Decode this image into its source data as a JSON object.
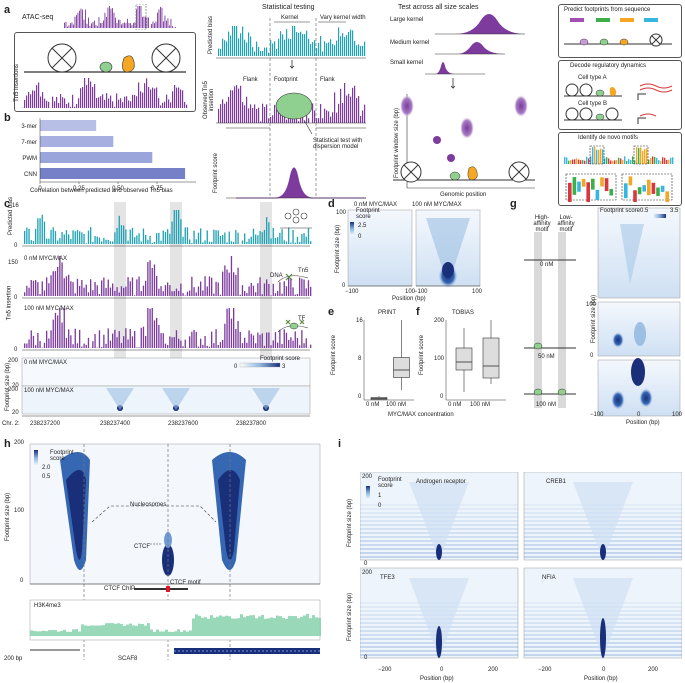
{
  "panel_a": {
    "label": "a",
    "atac_label": "ATAC-seq",
    "tn5_label": "Tn5 insertions",
    "predicted_bias": "Predicted bias",
    "observed_tn5": "Observed Tn5 insertion",
    "footprint_score": "Footprint score",
    "statistical_testing": "Statistical testing",
    "kernel": "Kernel",
    "vary_kernel_width": "Vary kernel width",
    "flank": "Flank",
    "footprint": "Footprint",
    "stat_test": "Statistical test with dispersion model",
    "test_all": "Test across all size scales",
    "large_kernel": "Large kernel",
    "medium_kernel": "Medium kernel",
    "small_kernel": "Small kernel",
    "window_size": "Footprint window size (bp)",
    "genomic_position": "Genomic position",
    "predict_footprints": "Predict footprints from sequence",
    "decode_dynamics": "Decode regulatory dynamics",
    "cell_type_a": "Cell type A",
    "cell_type_b": "Cell type B",
    "identify_motifs": "Identify de novo motifs"
  },
  "panel_b": {
    "label": "b",
    "xlabel": "Correlation between predicted and observed Tn5 bias",
    "ticks": [
      "0",
      "0.25",
      "0.50",
      "0.75"
    ]
  },
  "panel_c": {
    "label": "c",
    "predicted_bias": "Predicted bias",
    "tn5_insertion": "Tn5 insertion",
    "footprint_size": "Footprint size (bp)",
    "row_0nM": "0 nM MYC/MAX",
    "row_100nM": "100 nM MYC/MAX",
    "footprint_score": "Footprint score",
    "cb_min": "0",
    "cb_max": "3",
    "y16": "16",
    "y0a": "0",
    "y150": "150",
    "y0b": "0",
    "y0c": "0",
    "y200a": "200",
    "y20a": "20",
    "y200b": "200",
    "y20b": "20",
    "chr": "Chr. 2:",
    "xticks": [
      "238237200",
      "238237400",
      "238237600",
      "238237800"
    ],
    "dna": "DNA",
    "tn5": "Tn5",
    "tf": "TF"
  },
  "panel_d": {
    "label": "d",
    "title_0": "0 nM MYC/MAX",
    "title_100": "100 nM MYC/MAX",
    "footprint_score": "Footprint score",
    "cb_max": "2.5",
    "cb_min": "0",
    "ylabel": "Footprint size (bp)",
    "xlabel": "Position (bp)",
    "y100": "100",
    "y0": "0",
    "xticks": [
      "−100",
      "100",
      "−100",
      "100"
    ]
  },
  "panel_e": {
    "label": "e",
    "title": "PRINT",
    "ylabel": "Footprint score",
    "yticks": [
      "0",
      "8",
      "16"
    ]
  },
  "panel_f": {
    "label": "f",
    "title": "TOBIAS",
    "yticks": [
      "0",
      "100",
      "200"
    ],
    "ylabel": "Footprint score"
  },
  "ef_xlabel": "MYC/MAX concentration",
  "chart_data": [
    {
      "type": "bar",
      "categories": [
        "3-mer",
        "7-mer",
        "PWM",
        "CNN"
      ],
      "values": [
        0.36,
        0.47,
        0.72,
        0.93
      ],
      "xlabel": "Correlation between predicted and observed Tn5 bias",
      "xlim": [
        0,
        1
      ]
    },
    {
      "type": "box",
      "title": "PRINT",
      "categories": [
        "0 nM",
        "100 nM"
      ],
      "ylabel": "Footprint score",
      "xlabel": "MYC/MAX concentration",
      "ylim": [
        0,
        16
      ],
      "boxes": [
        {
          "min": 0,
          "q1": 0.1,
          "median": 0.3,
          "q3": 0.5,
          "max": 0.8
        },
        {
          "min": 2,
          "q1": 4.5,
          "median": 6,
          "q3": 8.5,
          "max": 16
        }
      ]
    },
    {
      "type": "box",
      "title": "TOBIAS",
      "categories": [
        "0 nM",
        "100 nM"
      ],
      "ylabel": "Footprint score",
      "xlabel": "MYC/MAX concentration",
      "ylim": [
        0,
        200
      ],
      "boxes": [
        {
          "min": 20,
          "q1": 75,
          "median": 95,
          "q3": 130,
          "max": 180
        },
        {
          "min": 40,
          "q1": 55,
          "median": 85,
          "q3": 155,
          "max": 200
        }
      ]
    }
  ],
  "panel_g": {
    "label": "g",
    "high_affinity": "High-affinity motif",
    "low_affinity": "Low-affinity motif",
    "c0": "0 nM",
    "c50": "50 nM",
    "c100": "100 nM",
    "footprint_score": "Footprint score",
    "cb_min": "0.5",
    "cb_max": "3.5",
    "ylabel": "Footprint size (bp)",
    "xlabel": "Position (bp)",
    "y100": "100",
    "y0": "0",
    "xticks": [
      "−100",
      "0",
      "100"
    ]
  },
  "panel_h": {
    "label": "h",
    "footprint_score": "Footprint score",
    "cb_max": "2.0",
    "cb_min": "0.5",
    "nucleosomes": "Nucleosomes",
    "ctcf": "CTCF",
    "ylabel": "Footprint size (bp)",
    "y200": "200",
    "y100": "100",
    "y0": "0",
    "ctcf_chip": "CTCF ChIP",
    "ctcf_motif": "CTCF motif",
    "h3k4me3": "H3K4me3",
    "scale": "200 bp",
    "gene": "SCAF8"
  },
  "panel_i": {
    "label": "i",
    "footprint_score": "Footprint score",
    "cb_max": "1",
    "cb_min": "0",
    "titles": [
      "Androgen receptor",
      "CREB1",
      "TFE3",
      "NFIA"
    ],
    "ylabel": "Footprint size (bp)",
    "xlabel": "Position (bp)",
    "y200": "200",
    "y0": "0",
    "xticks": [
      "−200",
      "0",
      "200",
      "−200",
      "0",
      "200"
    ]
  },
  "colors": {
    "teal": "#1fa3b5",
    "purple": "#7d3b9e",
    "green": "#8fcf8f",
    "heat_dark": "#1a2f7a",
    "heat_light": "#eaf2fb"
  }
}
